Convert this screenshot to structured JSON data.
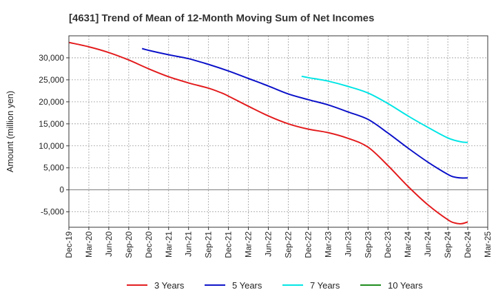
{
  "chart_data": {
    "type": "line",
    "title": "[4631]  Trend of Mean of 12-Month Moving Sum of Net Incomes",
    "xlabel": "",
    "ylabel": "Amount (million yen)",
    "x_ticks": [
      "Dec-19",
      "Mar-20",
      "Jun-20",
      "Sep-20",
      "Dec-20",
      "Mar-21",
      "Jun-21",
      "Sep-21",
      "Dec-21",
      "Mar-22",
      "Jun-22",
      "Sep-22",
      "Dec-22",
      "Mar-23",
      "Jun-23",
      "Sep-23",
      "Dec-23",
      "Mar-24",
      "Jun-24",
      "Sep-24",
      "Dec-24",
      "Mar-25"
    ],
    "y_ticks": [
      30000,
      25000,
      20000,
      15000,
      10000,
      5000,
      0,
      -5000
    ],
    "y_tick_labels": [
      "30,000",
      "25,000",
      "20,000",
      "15,000",
      "10,000",
      "5,000",
      "0",
      "-5,000"
    ],
    "ylim": [
      -8500,
      35000
    ],
    "x_range": [
      "Dec-19",
      "Mar-25"
    ],
    "grid": true,
    "legend_position": "bottom",
    "series": [
      {
        "name": "3 Years",
        "color": "#e31a1c",
        "points": [
          [
            "Dec-19",
            33500
          ],
          [
            "Mar-20",
            32500
          ],
          [
            "Jun-20",
            31200
          ],
          [
            "Sep-20",
            29500
          ],
          [
            "Dec-20",
            27500
          ],
          [
            "Mar-21",
            25700
          ],
          [
            "Jun-21",
            24300
          ],
          [
            "Sep-21",
            23100
          ],
          [
            "Nov-21",
            22000
          ],
          [
            "Dec-21",
            21300
          ],
          [
            "Mar-22",
            19000
          ],
          [
            "Jun-22",
            16800
          ],
          [
            "Sep-22",
            15000
          ],
          [
            "Dec-22",
            13800
          ],
          [
            "Mar-23",
            13000
          ],
          [
            "Jun-23",
            11700
          ],
          [
            "Sep-23",
            9700
          ],
          [
            "Dec-23",
            5500
          ],
          [
            "Mar-24",
            800
          ],
          [
            "Jun-24",
            -3400
          ],
          [
            "Sep-24",
            -6800
          ],
          [
            "Oct-24",
            -7500
          ],
          [
            "Nov-24",
            -7700
          ],
          [
            "Dec-24",
            -7300
          ]
        ]
      },
      {
        "name": "5 Years",
        "color": "#0a10c8",
        "points": [
          [
            "Nov-20",
            32100
          ],
          [
            "Dec-20",
            31700
          ],
          [
            "Mar-21",
            30700
          ],
          [
            "Jun-21",
            29800
          ],
          [
            "Sep-21",
            28500
          ],
          [
            "Dec-21",
            27000
          ],
          [
            "Mar-22",
            25300
          ],
          [
            "Jun-22",
            23600
          ],
          [
            "Sep-22",
            21800
          ],
          [
            "Dec-22",
            20500
          ],
          [
            "Mar-23",
            19300
          ],
          [
            "Jun-23",
            17700
          ],
          [
            "Sep-23",
            16000
          ],
          [
            "Dec-23",
            12900
          ],
          [
            "Mar-24",
            9500
          ],
          [
            "Jun-24",
            6300
          ],
          [
            "Sep-24",
            3500
          ],
          [
            "Oct-24",
            2900
          ],
          [
            "Nov-24",
            2700
          ],
          [
            "Dec-24",
            2700
          ]
        ]
      },
      {
        "name": "7 Years",
        "color": "#00e5e5",
        "points": [
          [
            "Nov-22",
            25800
          ],
          [
            "Dec-22",
            25500
          ],
          [
            "Mar-23",
            24700
          ],
          [
            "Jun-23",
            23500
          ],
          [
            "Sep-23",
            22000
          ],
          [
            "Dec-23",
            19600
          ],
          [
            "Mar-24",
            16800
          ],
          [
            "Jun-24",
            14200
          ],
          [
            "Sep-24",
            11800
          ],
          [
            "Nov-24",
            10900
          ],
          [
            "Dec-24",
            10800
          ]
        ]
      },
      {
        "name": "10 Years",
        "color": "#1a8a1a",
        "points": []
      }
    ]
  }
}
